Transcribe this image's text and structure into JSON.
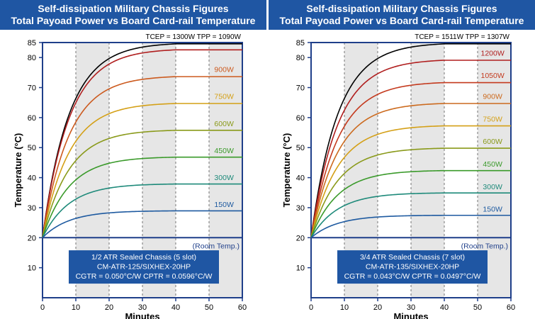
{
  "chart_data": [
    {
      "type": "line",
      "title": "Self-dissipation Military Chassis Figures",
      "subtitle": "Total Payoad Power vs Board Card-rail Temperature",
      "xlabel": "Minutes",
      "ylabel": "Temperature (°C)",
      "xlim": [
        0,
        60
      ],
      "ylim": [
        0,
        85
      ],
      "xticks": [
        0,
        10,
        20,
        30,
        40,
        50,
        60
      ],
      "yticks": [
        10,
        20,
        30,
        40,
        50,
        60,
        70,
        80,
        85
      ],
      "shaded_intervals": [
        [
          10,
          20
        ],
        [
          30,
          40
        ],
        [
          50,
          60
        ]
      ],
      "top_note": "TCEP = 1300W  TPP = 1090W",
      "room_temp_label": "(Room Temp.)",
      "room_temp": 20,
      "box_lines": [
        "1/2 ATR Sealed Chassis (5 slot)",
        "CM-ATR-125/SIXHEX-20HP",
        "CGTR = 0.050°C/W    CPTR = 0.0596°C/W"
      ],
      "series": [
        {
          "name": "",
          "final": 85,
          "color": "#000000"
        },
        {
          "name": "",
          "final": 83,
          "color": "#b01e1e"
        },
        {
          "name": "900W",
          "final": 74,
          "color": "#cc5a1e"
        },
        {
          "name": "750W",
          "final": 65,
          "color": "#d4a017"
        },
        {
          "name": "600W",
          "final": 56,
          "color": "#8a9a1a"
        },
        {
          "name": "450W",
          "final": 47,
          "color": "#3a9a2a"
        },
        {
          "name": "300W",
          "final": 38,
          "color": "#1e8a7a"
        },
        {
          "name": "150W",
          "final": 29,
          "color": "#1e5aa0"
        }
      ]
    },
    {
      "type": "line",
      "title": "Self-dissipation Military Chassis Figures",
      "subtitle": "Total Payoad Power vs Board Card-rail Temperature",
      "xlabel": "Minutes",
      "ylabel": "Temperature (°C)",
      "xlim": [
        0,
        60
      ],
      "ylim": [
        0,
        85
      ],
      "xticks": [
        0,
        10,
        20,
        30,
        40,
        50,
        60
      ],
      "yticks": [
        10,
        20,
        30,
        40,
        50,
        60,
        70,
        80,
        85
      ],
      "shaded_intervals": [
        [
          10,
          20
        ],
        [
          30,
          40
        ],
        [
          50,
          60
        ]
      ],
      "top_note": "TCEP = 1511W  TPP = 1307W",
      "room_temp_label": "(Room Temp.)",
      "room_temp": 20,
      "box_lines": [
        "3/4 ATR Sealed Chassis (7 slot)",
        "CM-ATR-135/SIXHEX-20HP",
        "CGTR = 0.043°C/W    CPTR = 0.0497°C/W"
      ],
      "series": [
        {
          "name": "",
          "final": 85,
          "color": "#000000"
        },
        {
          "name": "1200W",
          "final": 79.5,
          "color": "#b01e1e"
        },
        {
          "name": "1050W",
          "final": 72,
          "color": "#c43a1e"
        },
        {
          "name": "900W",
          "final": 65,
          "color": "#cc6a1e"
        },
        {
          "name": "750W",
          "final": 57.5,
          "color": "#d4a017"
        },
        {
          "name": "600W",
          "final": 50,
          "color": "#8a9a1a"
        },
        {
          "name": "450W",
          "final": 42.5,
          "color": "#3a9a2a"
        },
        {
          "name": "300W",
          "final": 35,
          "color": "#1e8a7a"
        },
        {
          "name": "150W",
          "final": 27.5,
          "color": "#1e5aa0"
        }
      ]
    }
  ]
}
